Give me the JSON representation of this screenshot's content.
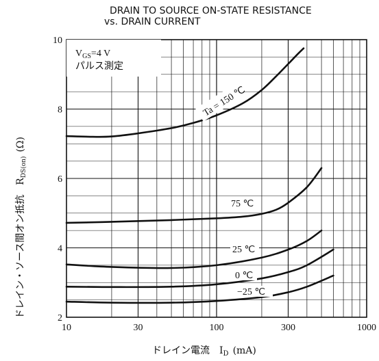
{
  "title_lines": [
    "DRAIN TO SOURCE ON-STATE RESISTANCE",
    "vs. DRAIN CURRENT"
  ],
  "chart_data": {
    "type": "line",
    "xscale": "log",
    "xlim": [
      10,
      1000
    ],
    "ylim": [
      2,
      10
    ],
    "xticks": [
      10,
      30,
      100,
      300,
      1000
    ],
    "xtick_labels": [
      "10",
      "30",
      "100",
      "300",
      "1000"
    ],
    "yticks": [
      2,
      4,
      6,
      8,
      10
    ],
    "ytick_labels": [
      "2",
      "4",
      "6",
      "8",
      "10"
    ],
    "xlabel": "ドレイン電流　I",
    "xlabel_sub": "D",
    "xlabel_unit": "(mA)",
    "ylabel": "ドレイン・ソース間オン抵抗　R",
    "ylabel_sub": "DS(on)",
    "ylabel_unit": "(Ω)",
    "grid": true,
    "condition_lines": [
      "V",
      "GS",
      "=4 V",
      "パルス測定"
    ],
    "series": [
      {
        "name": "Ta = 150 ℃",
        "x": [
          10,
          15,
          20,
          30,
          50,
          70,
          100,
          150,
          200,
          250,
          300,
          350,
          380
        ],
        "y": [
          7.22,
          7.2,
          7.21,
          7.3,
          7.45,
          7.6,
          7.82,
          8.17,
          8.55,
          8.95,
          9.3,
          9.6,
          9.75
        ]
      },
      {
        "name": "75 ℃",
        "x": [
          10,
          20,
          50,
          100,
          150,
          200,
          250,
          300,
          400,
          500
        ],
        "y": [
          4.72,
          4.75,
          4.8,
          4.85,
          4.9,
          4.98,
          5.1,
          5.3,
          5.75,
          6.3
        ]
      },
      {
        "name": "25 ℃",
        "x": [
          10,
          20,
          50,
          100,
          200,
          300,
          400,
          500
        ],
        "y": [
          3.52,
          3.45,
          3.42,
          3.5,
          3.72,
          3.95,
          4.2,
          4.5
        ]
      },
      {
        "name": "0 ℃",
        "x": [
          10,
          20,
          50,
          100,
          200,
          300,
          400,
          600
        ],
        "y": [
          2.88,
          2.87,
          2.88,
          2.95,
          3.12,
          3.3,
          3.5,
          3.95
        ]
      },
      {
        "name": "−25 ℃",
        "x": [
          10,
          20,
          50,
          100,
          200,
          300,
          400,
          600
        ],
        "y": [
          2.45,
          2.42,
          2.42,
          2.47,
          2.58,
          2.72,
          2.88,
          3.2
        ]
      }
    ],
    "curve_labels": [
      "Ta = 150 ℃",
      "75 ℃",
      "25 ℃",
      "0 ℃",
      "−25 ℃"
    ]
  }
}
